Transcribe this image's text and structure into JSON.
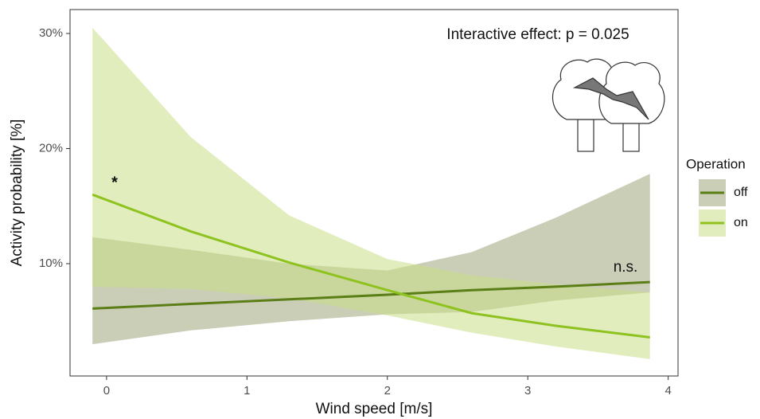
{
  "chart_data": {
    "type": "line",
    "x_label": "Wind speed [m/s]",
    "y_label": "Activity probability [%]",
    "annotations": [
      "Interactive effect: p = 0.025",
      "*",
      "n.s."
    ],
    "legend_title": "Operation",
    "x": [
      -0.1,
      0.6,
      1.3,
      2.0,
      2.6,
      3.2,
      3.87
    ],
    "series": [
      {
        "name": "off",
        "color": "#5b7f16",
        "band_color": "#9ea67a",
        "values": [
          6.1,
          6.5,
          6.9,
          7.3,
          7.7,
          8.0,
          8.4
        ],
        "upper": [
          12.3,
          11.2,
          10.0,
          9.4,
          11.0,
          14.0,
          17.8
        ],
        "lower": [
          3.0,
          4.2,
          5.0,
          5.6,
          5.8,
          6.8,
          7.5
        ]
      },
      {
        "name": "on",
        "color": "#8dc21f",
        "band_color": "#c8de86",
        "values": [
          16.0,
          12.8,
          10.1,
          7.7,
          5.7,
          4.6,
          3.6
        ],
        "upper": [
          30.5,
          21.0,
          14.2,
          10.4,
          9.0,
          8.2,
          7.5
        ],
        "lower": [
          8.0,
          7.8,
          7.0,
          5.5,
          4.0,
          2.8,
          1.7
        ]
      }
    ],
    "xlim": [
      -0.26,
      4.07
    ],
    "ylim": [
      0.24,
      32.08
    ],
    "xticks": [
      0,
      1,
      2,
      3,
      4
    ],
    "yticks": [
      {
        "value": 10,
        "label": "10%"
      },
      {
        "value": 20,
        "label": "20%"
      },
      {
        "value": 30,
        "label": "30%"
      }
    ]
  }
}
